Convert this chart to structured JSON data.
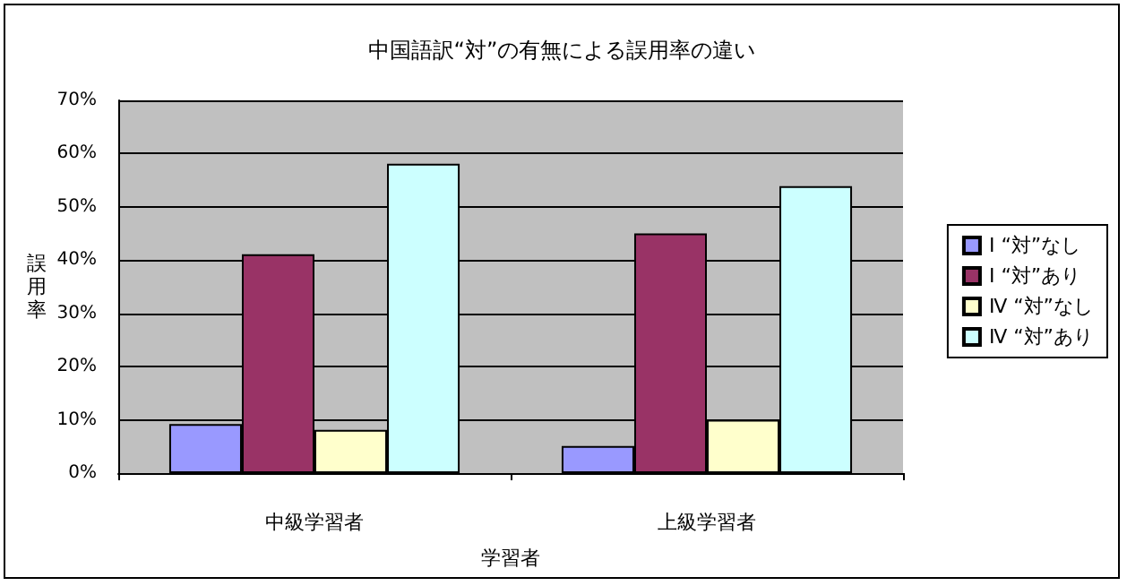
{
  "chart_data": {
    "type": "bar",
    "title": "中国語訳“対”の有無による誤用率の違い",
    "xlabel": "学習者",
    "ylabel": "誤用率",
    "categories": [
      "中級学習者",
      "上級学習者"
    ],
    "series": [
      {
        "name": "Ⅰ “対”なし",
        "color": "#9999ff",
        "values": [
          9.2,
          5.1
        ]
      },
      {
        "name": "Ⅰ “対”あり",
        "color": "#993366",
        "values": [
          41.1,
          45.0
        ]
      },
      {
        "name": "Ⅳ “対”なし",
        "color": "#ffffcc",
        "values": [
          8.1,
          10.0
        ]
      },
      {
        "name": "Ⅳ “対”あり",
        "color": "#ccffff",
        "values": [
          58.1,
          53.9
        ]
      }
    ],
    "ylim": [
      0,
      70
    ],
    "yticks": [
      {
        "value": 0,
        "label": "0%"
      },
      {
        "value": 10,
        "label": "10%"
      },
      {
        "value": 20,
        "label": "20%"
      },
      {
        "value": 30,
        "label": "30%"
      },
      {
        "value": 40,
        "label": "40%"
      },
      {
        "value": 50,
        "label": "50%"
      },
      {
        "value": 60,
        "label": "60%"
      },
      {
        "value": 70,
        "label": "70%"
      }
    ],
    "grid": "y",
    "legend": "right"
  }
}
